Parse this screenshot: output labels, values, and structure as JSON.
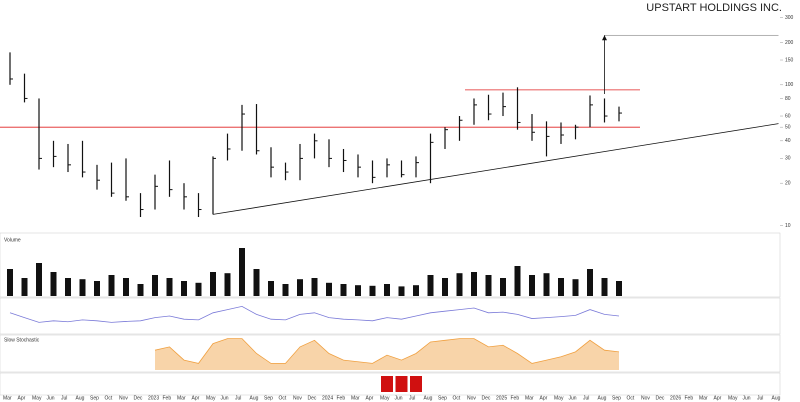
{
  "chart_data": {
    "type": "ohlc",
    "title": "UPSTART HOLDINGS INC.",
    "volume_label": "Volume",
    "stoch_label": "Slow Stochastic",
    "x": [
      "2022-03",
      "2022-04",
      "2022-05",
      "2022-06",
      "2022-07",
      "2022-08",
      "2022-09",
      "2022-10",
      "2022-11",
      "2022-12",
      "2023-01",
      "2023-02",
      "2023-03",
      "2023-04",
      "2023-05",
      "2023-06",
      "2023-07",
      "2023-08",
      "2023-09",
      "2023-10",
      "2023-11",
      "2023-12",
      "2024-01",
      "2024-02",
      "2024-03",
      "2024-04",
      "2024-05",
      "2024-06",
      "2024-07",
      "2024-08",
      "2024-09",
      "2024-10",
      "2024-11",
      "2024-12",
      "2025-01",
      "2025-02",
      "2025-03",
      "2025-04",
      "2025-05",
      "2025-06",
      "2025-07",
      "2025-08",
      "2025-09"
    ],
    "high": [
      170,
      120,
      80,
      40,
      38,
      40,
      27,
      28,
      30,
      17,
      23,
      29,
      20,
      17,
      31,
      45,
      72,
      73,
      36,
      28,
      38,
      45,
      41,
      35,
      32,
      29,
      30,
      29,
      31,
      45,
      50,
      60,
      80,
      85,
      88,
      96,
      62,
      55,
      54,
      52,
      84,
      80,
      70
    ],
    "low": [
      100,
      75,
      25,
      26,
      24,
      22,
      18,
      16,
      15,
      11.5,
      13,
      16,
      13,
      11.5,
      12,
      29,
      34,
      32,
      22,
      21,
      21,
      30,
      26,
      24,
      22,
      20,
      22,
      22,
      22,
      20,
      35,
      40,
      52,
      56,
      60,
      48,
      40,
      31,
      38,
      41,
      50,
      54,
      55
    ],
    "close": [
      110,
      80,
      30,
      31,
      27,
      24,
      21,
      17,
      16,
      13,
      19,
      18,
      16,
      13,
      30,
      35,
      62,
      34,
      26,
      24,
      30,
      40,
      30,
      29,
      26,
      22,
      27,
      23,
      28,
      39,
      48,
      56,
      72,
      62,
      70,
      54,
      46,
      43,
      44,
      50,
      72,
      60,
      63
    ],
    "volume": [
      45,
      30,
      55,
      40,
      30,
      28,
      25,
      35,
      30,
      20,
      35,
      30,
      25,
      22,
      40,
      38,
      80,
      45,
      25,
      20,
      28,
      30,
      22,
      20,
      18,
      17,
      20,
      16,
      18,
      35,
      30,
      38,
      40,
      35,
      30,
      50,
      35,
      38,
      30,
      28,
      45,
      30,
      25
    ],
    "rsi": [
      60,
      45,
      30,
      35,
      32,
      38,
      35,
      30,
      33,
      35,
      45,
      50,
      40,
      38,
      60,
      70,
      80,
      55,
      40,
      38,
      55,
      60,
      45,
      40,
      38,
      35,
      45,
      40,
      50,
      60,
      65,
      70,
      75,
      60,
      62,
      55,
      42,
      45,
      48,
      52,
      70,
      55,
      50
    ],
    "stoch": [
      null,
      null,
      null,
      null,
      null,
      null,
      null,
      null,
      null,
      null,
      60,
      70,
      30,
      20,
      80,
      95,
      95,
      50,
      20,
      20,
      70,
      90,
      50,
      30,
      25,
      20,
      45,
      30,
      50,
      85,
      90,
      95,
      95,
      70,
      75,
      50,
      20,
      30,
      40,
      55,
      90,
      60,
      55
    ],
    "signal": [
      0,
      0,
      0,
      0,
      0,
      0,
      0,
      0,
      0,
      0,
      0,
      0,
      0,
      0,
      0,
      0,
      0,
      0,
      0,
      0,
      0,
      0,
      0,
      0,
      0,
      0,
      1,
      1,
      1,
      0,
      0,
      0,
      0,
      0,
      0,
      0,
      0,
      0,
      0,
      0,
      0,
      0,
      0
    ],
    "levels": [
      92,
      50
    ],
    "trendline": {
      "x": [
        "2023-05",
        "2026-08"
      ],
      "values": [
        12,
        53
      ]
    },
    "target": {
      "x": [
        "2025-08",
        "2026-08"
      ],
      "values": [
        86,
        225
      ]
    },
    "ylim": [
      9,
      340
    ],
    "yticks": [
      10,
      20,
      30,
      40,
      50,
      60,
      80,
      100,
      150,
      200,
      300
    ],
    "log_scale": true,
    "volume_ylim": [
      0,
      100
    ],
    "osc_ylim": [
      0,
      100
    ],
    "xlabels": [
      "Mar",
      "Apr",
      "May",
      "Jun",
      "Jul",
      "Aug",
      "Sep",
      "Oct",
      "Nov",
      "Dec",
      "2023",
      "Feb",
      "Mar",
      "Apr",
      "May",
      "Jun",
      "Jul",
      "Aug",
      "Sep",
      "Oct",
      "Nov",
      "Dec",
      "2024",
      "Feb",
      "Mar",
      "Apr",
      "May",
      "Jun",
      "Jul",
      "Aug",
      "Sep",
      "Oct",
      "Nov",
      "Dec",
      "2025",
      "Feb",
      "Mar",
      "Apr",
      "May",
      "Jun",
      "Jul",
      "Aug",
      "Sep",
      "Oct",
      "Nov",
      "Dec",
      "2026",
      "Feb",
      "Mar",
      "Apr",
      "May",
      "Jun",
      "Jul",
      "Aug"
    ],
    "colors": {
      "bar": "#111",
      "volume": "#111",
      "level": "#e02020",
      "trend": "#111",
      "rsi": "#7a7ad8",
      "stoch": "#f0a040",
      "signal": "#d01010"
    }
  }
}
